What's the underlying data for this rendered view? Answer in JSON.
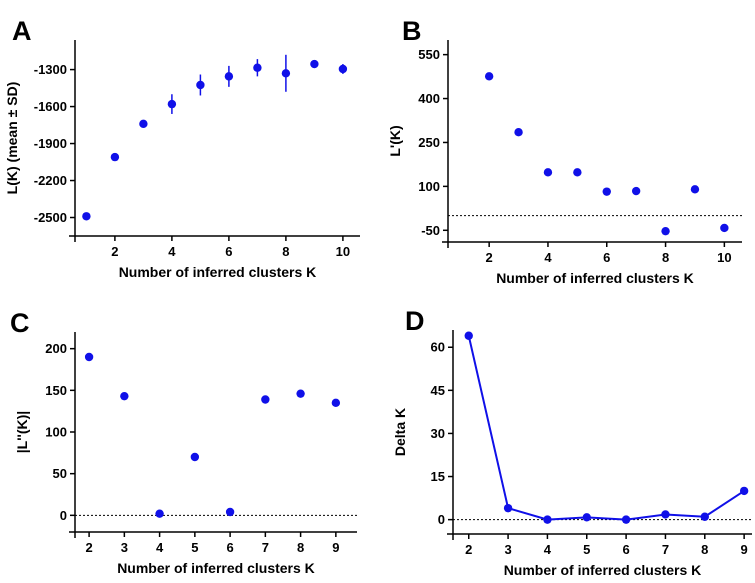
{
  "colors": {
    "series": "#1010e8",
    "axis": "#000000"
  },
  "chart_data": [
    {
      "panel": "A",
      "type": "scatter",
      "xlabel": "Number of inferred clusters K",
      "ylabel": "L(K) (mean ± SD)",
      "xlim": [
        0.6,
        10.6
      ],
      "ylim": [
        -2650,
        -1060
      ],
      "xticks": [
        2,
        4,
        6,
        8,
        10
      ],
      "yticks": [
        -2500,
        -2200,
        -1900,
        -1600,
        -1300
      ],
      "x": [
        1,
        2,
        3,
        4,
        5,
        6,
        7,
        8,
        9,
        10
      ],
      "y": [
        -2490,
        -2010,
        -1740,
        -1580,
        -1425,
        -1355,
        -1285,
        -1330,
        -1255,
        -1295
      ],
      "error": [
        0,
        0,
        20,
        80,
        85,
        85,
        70,
        150,
        15,
        40
      ],
      "ref_line": null,
      "connect": false
    },
    {
      "panel": "B",
      "type": "scatter",
      "xlabel": "Number of inferred clusters K",
      "ylabel": "L'(K)",
      "xlim": [
        0.6,
        10.6
      ],
      "ylim": [
        -90,
        600
      ],
      "xticks": [
        2,
        4,
        6,
        8,
        10
      ],
      "yticks": [
        -50,
        100,
        250,
        400,
        550
      ],
      "x": [
        2,
        3,
        4,
        5,
        6,
        7,
        8,
        9,
        10
      ],
      "y": [
        476,
        285,
        148,
        148,
        82,
        84,
        -53,
        90,
        -42
      ],
      "error": [],
      "ref_line": 0,
      "connect": false
    },
    {
      "panel": "C",
      "type": "scatter",
      "xlabel": "Number of inferred clusters K",
      "ylabel": "|L''(K)|",
      "xlim": [
        1.6,
        9.6
      ],
      "ylim": [
        -20,
        220
      ],
      "xticks": [
        2,
        3,
        4,
        5,
        6,
        7,
        8,
        9
      ],
      "yticks": [
        0,
        50,
        100,
        150,
        200
      ],
      "x": [
        2,
        3,
        4,
        5,
        6,
        7,
        8,
        9
      ],
      "y": [
        190,
        143,
        2,
        70,
        4,
        139,
        146,
        135
      ],
      "error": [],
      "ref_line": 0,
      "connect": false
    },
    {
      "panel": "D",
      "type": "line",
      "xlabel": "Number of inferred clusters K",
      "ylabel": "Delta K",
      "xlim": [
        1.6,
        9.2
      ],
      "ylim": [
        -5,
        66
      ],
      "xticks": [
        2,
        3,
        4,
        5,
        6,
        7,
        8,
        9
      ],
      "yticks": [
        0,
        15,
        30,
        45,
        60
      ],
      "x": [
        2,
        3,
        4,
        5,
        6,
        7,
        8,
        9
      ],
      "y": [
        64,
        4,
        0,
        0.8,
        0,
        1.8,
        1,
        10
      ],
      "error": [],
      "ref_line": 0,
      "connect": true
    }
  ]
}
